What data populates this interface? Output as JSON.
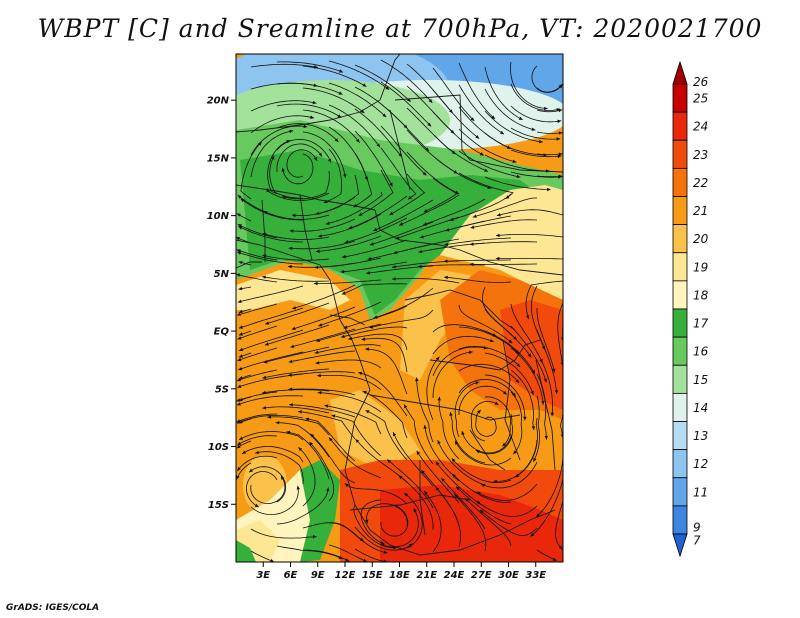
{
  "title": "WBPT [C] and Sreamline at 700hPa, VT: 2020021700",
  "footer": "GrADS: IGES/COLA",
  "map": {
    "lon_range": [
      0,
      36
    ],
    "lat_range": [
      -20,
      24
    ],
    "x_ticks": [
      {
        "value": 3,
        "label": "3E"
      },
      {
        "value": 6,
        "label": "6E"
      },
      {
        "value": 9,
        "label": "9E"
      },
      {
        "value": 12,
        "label": "12E"
      },
      {
        "value": 15,
        "label": "15E"
      },
      {
        "value": 18,
        "label": "18E"
      },
      {
        "value": 21,
        "label": "21E"
      },
      {
        "value": 24,
        "label": "24E"
      },
      {
        "value": 27,
        "label": "27E"
      },
      {
        "value": 30,
        "label": "30E"
      },
      {
        "value": 33,
        "label": "33E"
      }
    ],
    "y_ticks": [
      {
        "value": 20,
        "label": "20N"
      },
      {
        "value": 15,
        "label": "15N"
      },
      {
        "value": 10,
        "label": "10N"
      },
      {
        "value": 5,
        "label": "5N"
      },
      {
        "value": 0,
        "label": "EQ"
      },
      {
        "value": -5,
        "label": "5S"
      },
      {
        "value": -10,
        "label": "10S"
      },
      {
        "value": -15,
        "label": "15S"
      }
    ]
  },
  "colorbar": {
    "labels": [
      "26",
      "25",
      "24",
      "23",
      "22",
      "21",
      "20",
      "19",
      "18",
      "17",
      "16",
      "15",
      "14",
      "13",
      "12",
      "11",
      "9",
      "7"
    ],
    "colors": [
      "#a50000",
      "#c80000",
      "#e8270b",
      "#f24a0c",
      "#f5730d",
      "#f79b16",
      "#fbc24b",
      "#fde795",
      "#fff4be",
      "#36b03a",
      "#67c95e",
      "#a3e29a",
      "#dff3ec",
      "#b6dcf5",
      "#8ec4f0",
      "#62a6ea",
      "#3d86e0",
      "#1f63d3"
    ]
  }
}
